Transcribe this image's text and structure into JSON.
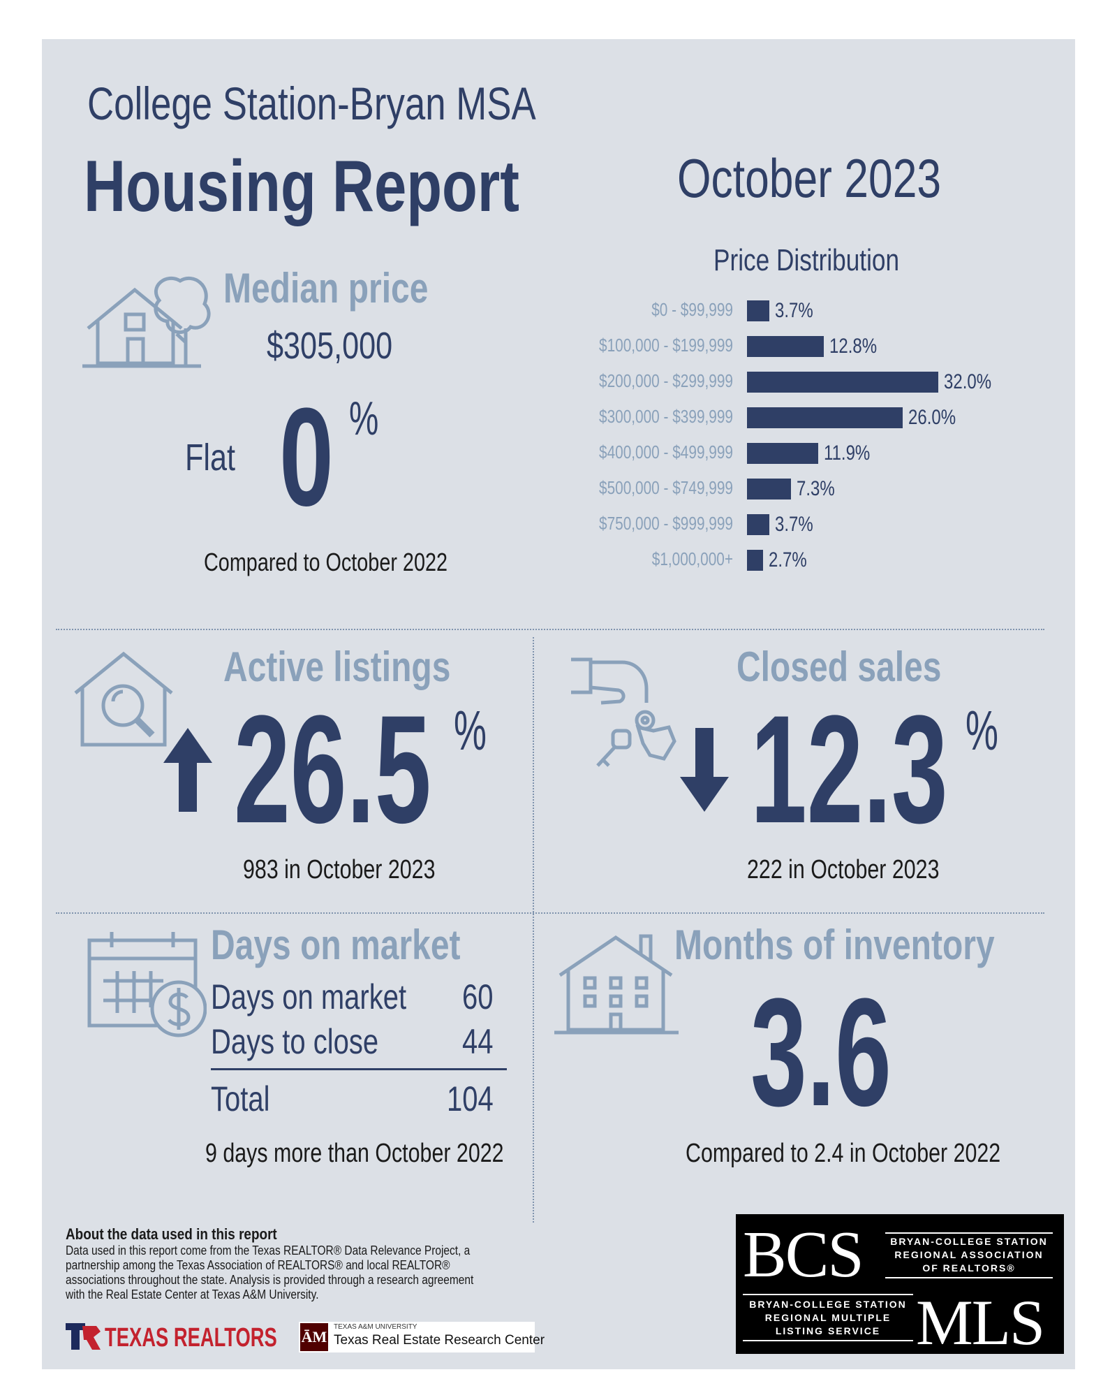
{
  "header": {
    "msa": "College Station-Bryan MSA",
    "report_title": "Housing Report",
    "period": "October 2023"
  },
  "median_price": {
    "title": "Median price",
    "value": "$305,000",
    "direction_word": "Flat",
    "change_number": "0",
    "change_unit": "%",
    "comparison": "Compared to October 2022"
  },
  "price_distribution": {
    "title": "Price Distribution",
    "chart_data": {
      "type": "bar",
      "title": "Price Distribution",
      "orientation": "horizontal",
      "categories": [
        "$0 - $99,999",
        "$100,000 - $199,999",
        "$200,000 - $299,999",
        "$300,000 - $399,999",
        "$400,000 - $499,999",
        "$500,000 - $749,999",
        "$750,000 - $999,999",
        "$1,000,000+"
      ],
      "values": [
        3.7,
        12.8,
        32.0,
        26.0,
        11.9,
        7.3,
        3.7,
        2.7
      ],
      "value_labels": [
        "3.7%",
        "12.8%",
        "32.0%",
        "26.0%",
        "11.9%",
        "7.3%",
        "3.7%",
        "2.7%"
      ],
      "unit": "%",
      "color": "#2f3f66"
    }
  },
  "active_listings": {
    "title": "Active listings",
    "direction": "up",
    "change_number": "26.5",
    "change_unit": "%",
    "detail": "983 in October 2023"
  },
  "closed_sales": {
    "title": "Closed sales",
    "direction": "down",
    "change_number": "12.3",
    "change_unit": "%",
    "detail": "222 in October 2023"
  },
  "days_on_market": {
    "title": "Days on market",
    "rows": [
      {
        "label": "Days on market",
        "value": "60"
      },
      {
        "label": "Days to close",
        "value": "44"
      }
    ],
    "total_label": "Total",
    "total_value": "104",
    "comparison": "9 days more than October 2022"
  },
  "months_inventory": {
    "title": "Months of inventory",
    "value": "3.6",
    "comparison": "Compared to 2.4 in October 2022"
  },
  "footer": {
    "about_title": "About the data used in this report",
    "about_lines": [
      "Data used in this report come from the Texas REALTOR® Data Relevance Project, a",
      "partnership among the Texas Association of REALTORS® and local REALTOR®",
      "associations throughout the state. Analysis is provided through a research agreement",
      "with the Real Estate Center at Texas A&M University."
    ],
    "texas_realtors_logo": "TEXAS REALTORS",
    "tamu_small": "TEXAS A&M UNIVERSITY",
    "tamu_center": "Texas Real Estate Research Center",
    "bcs_logo_big": "BCS",
    "bcs_logo_lines": [
      "BRYAN-COLLEGE STATION",
      "REGIONAL ASSOCIATION",
      "OF REALTORS®"
    ],
    "mls_logo_lines": [
      "BRYAN-COLLEGE STATION",
      "REGIONAL MULTIPLE",
      "LISTING SERVICE"
    ],
    "mls_logo_big": "MLS"
  },
  "colors": {
    "navy": "#2f3f66",
    "muted_blue": "#8aa1ba",
    "panel_bg": "#dce0e6"
  }
}
